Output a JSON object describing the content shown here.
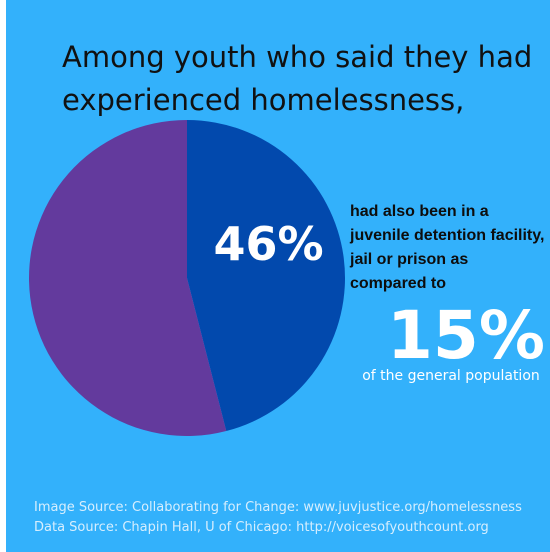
{
  "colors": {
    "background": "#33b1fb",
    "highlight_slice": "#0249ad",
    "remainder_slice": "#633a9d"
  },
  "headline": "Among youth who said they had experienced homelessness,",
  "chart_data": {
    "type": "pie",
    "slices": [
      {
        "value": 46,
        "label": "46%",
        "color": "#0249ad"
      },
      {
        "value": 54,
        "label": "",
        "color": "#633a9d"
      }
    ],
    "annotations": [
      "had also been in a juvenile detention facility, jail or prison as compared to"
    ]
  },
  "side_text": "had also been in a juvenile detention facility, jail or prison as compared to",
  "comparison": {
    "value": "15%",
    "label": "of the general population"
  },
  "sources": {
    "image": "Image Source: Collaborating for Change: www.juvjustice.org/homelessness",
    "data": "Data Source: Chapin Hall, U of Chicago: http://voicesofyouthcount.org"
  }
}
